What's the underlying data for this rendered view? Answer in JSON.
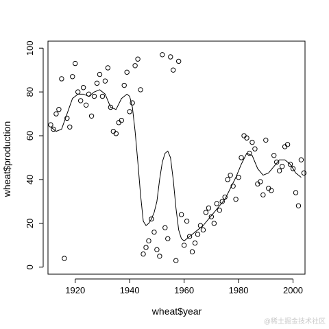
{
  "chart_data": {
    "type": "scatter",
    "xlabel": "wheat$year",
    "ylabel": "wheat$production",
    "xlim": [
      1910,
      2004
    ],
    "ylim": [
      0,
      100
    ],
    "xticks": [
      1920,
      1940,
      1960,
      1980,
      2000
    ],
    "yticks": [
      0,
      20,
      40,
      60,
      80,
      100
    ],
    "grid": false,
    "legend": "none",
    "series": [
      {
        "type": "scatter",
        "marker": "open-circle",
        "x": [
          1911,
          1912,
          1913,
          1914,
          1915,
          1916,
          1917,
          1918,
          1919,
          1920,
          1921,
          1922,
          1923,
          1924,
          1925,
          1926,
          1927,
          1928,
          1929,
          1930,
          1931,
          1932,
          1933,
          1934,
          1935,
          1936,
          1937,
          1938,
          1939,
          1940,
          1941,
          1942,
          1943,
          1944,
          1945,
          1946,
          1947,
          1948,
          1949,
          1950,
          1951,
          1952,
          1953,
          1954,
          1955,
          1956,
          1957,
          1958,
          1959,
          1960,
          1961,
          1962,
          1963,
          1964,
          1965,
          1966,
          1967,
          1968,
          1969,
          1970,
          1971,
          1972,
          1973,
          1974,
          1975,
          1976,
          1977,
          1978,
          1979,
          1980,
          1981,
          1982,
          1983,
          1984,
          1985,
          1986,
          1987,
          1988,
          1989,
          1990,
          1991,
          1992,
          1993,
          1994,
          1995,
          1996,
          1997,
          1998,
          1999,
          2000,
          2001,
          2002,
          2003,
          2004
        ],
        "y": [
          65,
          63,
          70,
          72,
          86,
          4,
          68,
          64,
          87,
          93,
          80,
          76,
          82,
          74,
          79,
          69,
          78,
          84,
          88,
          78,
          85,
          91,
          73,
          62,
          61,
          66,
          67,
          83,
          89,
          71,
          75,
          92,
          95,
          81,
          6,
          9,
          12,
          22,
          16,
          8,
          5,
          97,
          18,
          13,
          96,
          90,
          3,
          94,
          24,
          10,
          21,
          14,
          7,
          11,
          15,
          19,
          17,
          25,
          27,
          23,
          20,
          29,
          26,
          30,
          32,
          40,
          42,
          37,
          31,
          41,
          50,
          60,
          59,
          52,
          57,
          54,
          38,
          39,
          33,
          58,
          36,
          35,
          51,
          48,
          44,
          46,
          55,
          56,
          47,
          45,
          34,
          28,
          49,
          43
        ]
      },
      {
        "type": "line",
        "x": [
          1911,
          1913,
          1915,
          1917,
          1919,
          1921,
          1923,
          1925,
          1927,
          1929,
          1931,
          1933,
          1935,
          1937,
          1939,
          1940,
          1941,
          1942,
          1943,
          1944,
          1945,
          1946,
          1947,
          1948,
          1949,
          1950,
          1951,
          1952,
          1953,
          1954,
          1955,
          1956,
          1957,
          1958,
          1959,
          1960,
          1961,
          1962,
          1963,
          1964,
          1965,
          1967,
          1969,
          1971,
          1973,
          1975,
          1977,
          1979,
          1981,
          1983,
          1985,
          1987,
          1989,
          1991,
          1993,
          1995,
          1997,
          1999,
          2001,
          2003
        ],
        "y": [
          64,
          62,
          63,
          70,
          77,
          79,
          79,
          78,
          80,
          81,
          79,
          73,
          72,
          77,
          79,
          78,
          73,
          62,
          48,
          33,
          21,
          19,
          20,
          22,
          25,
          30,
          40,
          48,
          52,
          53,
          50,
          40,
          27,
          17,
          13,
          12,
          13,
          14,
          15,
          16,
          17,
          19,
          22,
          25,
          28,
          31,
          36,
          41,
          47,
          52,
          51,
          45,
          42,
          43,
          46,
          49,
          49,
          47,
          43,
          41
        ]
      }
    ]
  },
  "watermark": {
    "text": "@稀土掘金技术社区"
  }
}
